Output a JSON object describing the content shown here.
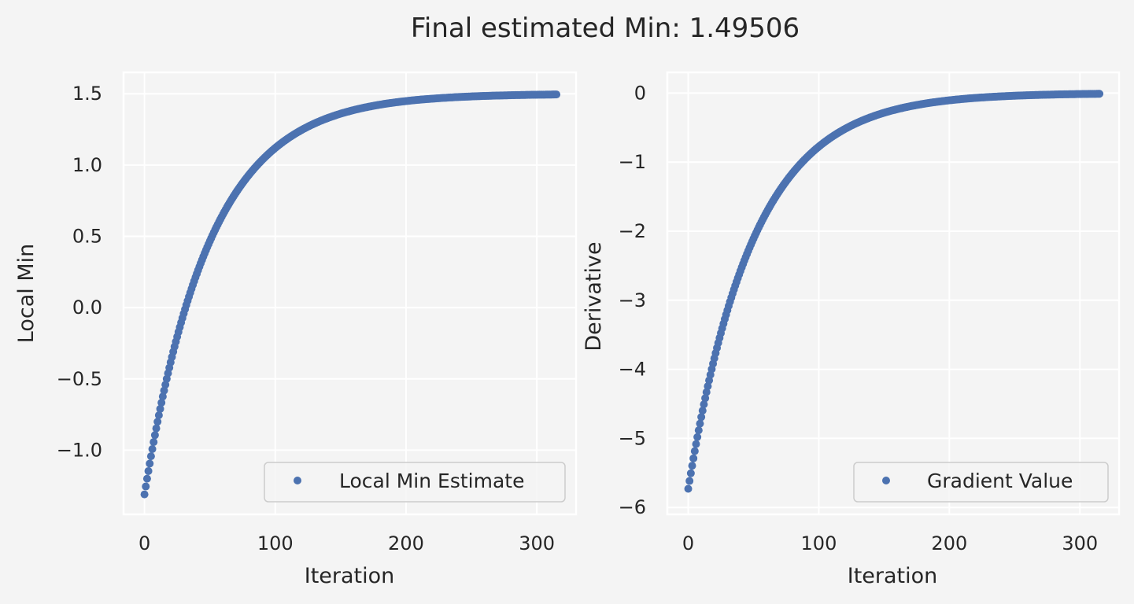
{
  "figure": {
    "title": "Final estimated Min: 1.49506"
  },
  "chart_data": [
    {
      "type": "scatter",
      "title": "",
      "xlabel": "Iteration",
      "ylabel": "Local Min",
      "xlim": [
        -16,
        330
      ],
      "ylim": [
        -1.45,
        1.65
      ],
      "xticks": [
        0,
        100,
        200,
        300
      ],
      "xtick_labels": [
        "0",
        "100",
        "200",
        "300"
      ],
      "yticks": [
        -1.0,
        -0.5,
        0.0,
        0.5,
        1.0,
        1.5
      ],
      "ytick_labels": [
        "−1.0",
        "−0.5",
        "0.0",
        "0.5",
        "1.0",
        "1.5"
      ],
      "grid": true,
      "legend_position": "lower-right",
      "series": [
        {
          "name": "Local Min Estimate",
          "color": "#4c72b0",
          "model": {
            "n_points": 316,
            "start": -1.31,
            "limit": 1.5,
            "decay_rate": 0.02,
            "x_step": 1
          },
          "values_sampled": {
            "x": [
              0,
              50,
              100,
              150,
              200,
              250,
              300,
              315
            ],
            "y": [
              -1.31,
              0.51,
              1.12,
              1.36,
              1.45,
              1.48,
              1.49,
              1.495
            ]
          }
        }
      ]
    },
    {
      "type": "scatter",
      "title": "",
      "xlabel": "Iteration",
      "ylabel": "Derivative",
      "xlim": [
        -16,
        330
      ],
      "ylim": [
        -6.1,
        0.3
      ],
      "xticks": [
        0,
        100,
        200,
        300
      ],
      "xtick_labels": [
        "0",
        "100",
        "200",
        "300"
      ],
      "yticks": [
        0,
        -1,
        -2,
        -3,
        -4,
        -5,
        -6
      ],
      "ytick_labels": [
        "0",
        "−1",
        "−2",
        "−3",
        "−4",
        "−5",
        "−6"
      ],
      "grid": true,
      "legend_position": "lower-right",
      "series": [
        {
          "name": "Gradient Value",
          "color": "#4c72b0",
          "model": {
            "n_points": 316,
            "start": -5.73,
            "limit": 0.0,
            "decay_rate": 0.02,
            "x_step": 1
          },
          "values_sampled": {
            "x": [
              0,
              50,
              100,
              150,
              200,
              250,
              300,
              315
            ],
            "y": [
              -5.73,
              -2.07,
              -0.78,
              -0.29,
              -0.1,
              -0.04,
              -0.01,
              0.0
            ]
          }
        }
      ]
    }
  ]
}
